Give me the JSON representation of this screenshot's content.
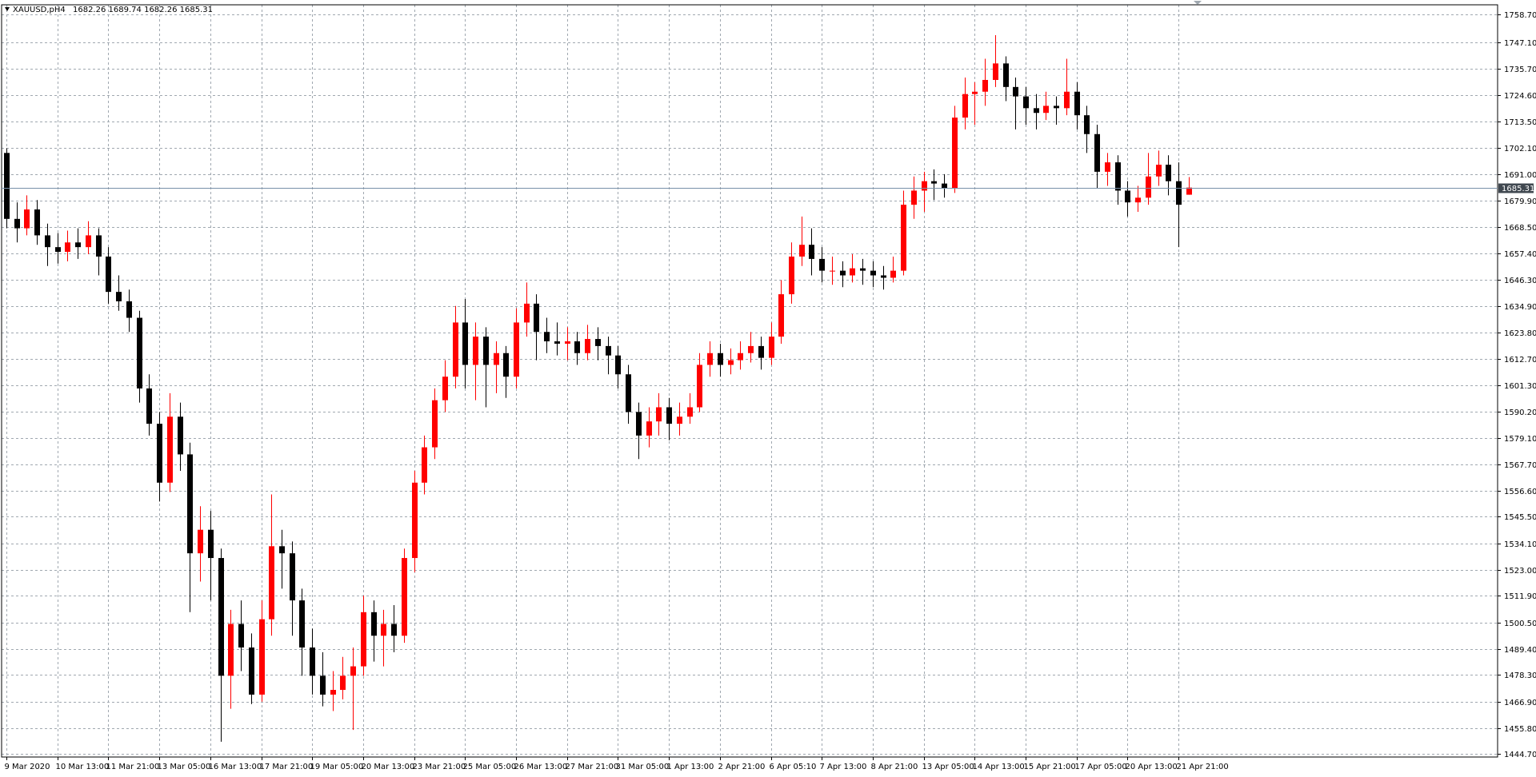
{
  "chart_data": {
    "type": "candlestick",
    "symbol": "XAUUSD,pH4",
    "up_color": "#ff0000",
    "down_color": "#000000",
    "grid": true,
    "ylim": [
      1443.5,
      1762.9
    ],
    "yticks": [
      {
        "value": 1444.7,
        "label": "1444.70"
      },
      {
        "value": 1455.8,
        "label": "1455.80"
      },
      {
        "value": 1466.9,
        "label": "1466.90"
      },
      {
        "value": 1478.3,
        "label": "1478.30"
      },
      {
        "value": 1489.4,
        "label": "1489.40"
      },
      {
        "value": 1500.5,
        "label": "1500.50"
      },
      {
        "value": 1511.9,
        "label": "1511.90"
      },
      {
        "value": 1523,
        "label": "1523.00"
      },
      {
        "value": 1534.1,
        "label": "1534.10"
      },
      {
        "value": 1545.5,
        "label": "1545.50"
      },
      {
        "value": 1556.6,
        "label": "1556.60"
      },
      {
        "value": 1567.7,
        "label": "1567.70"
      },
      {
        "value": 1579.1,
        "label": "1579.10"
      },
      {
        "value": 1590.2,
        "label": "1590.20"
      },
      {
        "value": 1601.3,
        "label": "1601.30"
      },
      {
        "value": 1612.7,
        "label": "1612.70"
      },
      {
        "value": 1623.8,
        "label": "1623.80"
      },
      {
        "value": 1634.9,
        "label": "1634.90"
      },
      {
        "value": 1646.3,
        "label": "1646.30"
      },
      {
        "value": 1657.4,
        "label": "1657.40"
      },
      {
        "value": 1668.5,
        "label": "1668.50"
      },
      {
        "value": 1679.9,
        "label": "1679.90"
      },
      {
        "value": 1691,
        "label": "1691.00"
      },
      {
        "value": 1702.1,
        "label": "1702.10"
      },
      {
        "value": 1713.5,
        "label": "1713.50"
      },
      {
        "value": 1724.6,
        "label": "1724.60"
      },
      {
        "value": 1735.7,
        "label": "1735.70"
      },
      {
        "value": 1747.1,
        "label": "1747.10"
      },
      {
        "value": 1758.7,
        "label": "1758.70"
      }
    ],
    "xticks": [
      {
        "value": 0,
        "label": "9 Mar 2020"
      },
      {
        "value": 5,
        "label": "10 Mar 13:00"
      },
      {
        "value": 10,
        "label": "11 Mar 21:00"
      },
      {
        "value": 15,
        "label": "13 Mar 05:00"
      },
      {
        "value": 20,
        "label": "16 Mar 13:00"
      },
      {
        "value": 25,
        "label": "17 Mar 21:00"
      },
      {
        "value": 30,
        "label": "19 Mar 05:00"
      },
      {
        "value": 35,
        "label": "20 Mar 13:00"
      },
      {
        "value": 40,
        "label": "23 Mar 21:00"
      },
      {
        "value": 45,
        "label": "25 Mar 05:00"
      },
      {
        "value": 50,
        "label": "26 Mar 13:00"
      },
      {
        "value": 55,
        "label": "27 Mar 21:00"
      },
      {
        "value": 60,
        "label": "31 Mar 05:00"
      },
      {
        "value": 65,
        "label": "1 Apr 13:00"
      },
      {
        "value": 70,
        "label": "2 Apr 21:00"
      },
      {
        "value": 75,
        "label": "6 Apr 05:10"
      },
      {
        "value": 80,
        "label": "7 Apr 13:00"
      },
      {
        "value": 85,
        "label": "8 Apr 21:00"
      },
      {
        "value": 90,
        "label": "13 Apr 05:00"
      },
      {
        "value": 95,
        "label": "14 Apr 13:00"
      },
      {
        "value": 100,
        "label": "15 Apr 21:00"
      },
      {
        "value": 105,
        "label": "17 Apr 05:00"
      },
      {
        "value": 110,
        "label": "20 Apr 13:00"
      },
      {
        "value": 115,
        "label": "21 Apr 21:00"
      }
    ],
    "ohlc": [
      [
        1700,
        1702,
        1668,
        1672
      ],
      [
        1672,
        1679,
        1662,
        1668
      ],
      [
        1668,
        1682,
        1665,
        1676
      ],
      [
        1676,
        1680,
        1661,
        1665
      ],
      [
        1665,
        1670,
        1652,
        1660
      ],
      [
        1660,
        1666,
        1653,
        1658
      ],
      [
        1658,
        1667,
        1654,
        1662
      ],
      [
        1662,
        1668,
        1655,
        1660
      ],
      [
        1660,
        1671,
        1657,
        1665
      ],
      [
        1665,
        1668,
        1648,
        1656
      ],
      [
        1656,
        1660,
        1636,
        1641
      ],
      [
        1641,
        1648,
        1633,
        1637
      ],
      [
        1637,
        1642,
        1624,
        1630
      ],
      [
        1630,
        1633,
        1594,
        1600
      ],
      [
        1600,
        1606,
        1580,
        1585
      ],
      [
        1585,
        1590,
        1552,
        1560
      ],
      [
        1560,
        1598,
        1556,
        1588
      ],
      [
        1588,
        1594,
        1565,
        1572
      ],
      [
        1572,
        1577,
        1505,
        1530
      ],
      [
        1530,
        1550,
        1518,
        1540
      ],
      [
        1540,
        1548,
        1510,
        1528
      ],
      [
        1528,
        1532,
        1450,
        1478
      ],
      [
        1478,
        1506,
        1464,
        1500
      ],
      [
        1500,
        1510,
        1480,
        1490
      ],
      [
        1490,
        1496,
        1466,
        1470
      ],
      [
        1470,
        1510,
        1467,
        1502
      ],
      [
        1502,
        1555,
        1495,
        1533
      ],
      [
        1533,
        1540,
        1515,
        1530
      ],
      [
        1530,
        1535,
        1495,
        1510
      ],
      [
        1510,
        1515,
        1478,
        1490
      ],
      [
        1490,
        1498,
        1470,
        1478
      ],
      [
        1478,
        1488,
        1465,
        1470
      ],
      [
        1470,
        1480,
        1463,
        1472
      ],
      [
        1472,
        1486,
        1468,
        1478
      ],
      [
        1478,
        1490,
        1455,
        1482
      ],
      [
        1482,
        1512,
        1478,
        1505
      ],
      [
        1505,
        1510,
        1484,
        1495
      ],
      [
        1495,
        1506,
        1482,
        1500
      ],
      [
        1500,
        1508,
        1488,
        1495
      ],
      [
        1495,
        1532,
        1492,
        1528
      ],
      [
        1528,
        1565,
        1522,
        1560
      ],
      [
        1560,
        1580,
        1555,
        1575
      ],
      [
        1575,
        1600,
        1570,
        1595
      ],
      [
        1595,
        1612,
        1590,
        1605
      ],
      [
        1605,
        1635,
        1600,
        1628
      ],
      [
        1628,
        1638,
        1600,
        1610
      ],
      [
        1610,
        1628,
        1595,
        1622
      ],
      [
        1622,
        1626,
        1592,
        1610
      ],
      [
        1610,
        1620,
        1598,
        1615
      ],
      [
        1615,
        1618,
        1596,
        1605
      ],
      [
        1605,
        1634,
        1600,
        1628
      ],
      [
        1628,
        1645,
        1622,
        1636
      ],
      [
        1636,
        1640,
        1612,
        1624
      ],
      [
        1624,
        1630,
        1615,
        1620
      ],
      [
        1620,
        1628,
        1614,
        1619
      ],
      [
        1619,
        1626,
        1612,
        1620
      ],
      [
        1620,
        1624,
        1610,
        1615
      ],
      [
        1615,
        1627,
        1612,
        1621
      ],
      [
        1621,
        1626,
        1612,
        1618
      ],
      [
        1618,
        1622,
        1606,
        1614
      ],
      [
        1614,
        1618,
        1600,
        1606
      ],
      [
        1606,
        1610,
        1585,
        1590
      ],
      [
        1590,
        1594,
        1570,
        1580
      ],
      [
        1580,
        1592,
        1575,
        1586
      ],
      [
        1586,
        1598,
        1580,
        1592
      ],
      [
        1592,
        1596,
        1578,
        1585
      ],
      [
        1585,
        1594,
        1580,
        1588
      ],
      [
        1588,
        1598,
        1585,
        1592
      ],
      [
        1592,
        1615,
        1590,
        1610
      ],
      [
        1610,
        1620,
        1605,
        1615
      ],
      [
        1615,
        1619,
        1605,
        1610
      ],
      [
        1610,
        1617,
        1606,
        1612
      ],
      [
        1612,
        1620,
        1608,
        1615
      ],
      [
        1615,
        1624,
        1611,
        1618
      ],
      [
        1618,
        1622,
        1608,
        1613
      ],
      [
        1613,
        1628,
        1610,
        1622
      ],
      [
        1622,
        1646,
        1619,
        1640
      ],
      [
        1640,
        1662,
        1636,
        1656
      ],
      [
        1656,
        1673,
        1652,
        1661
      ],
      [
        1661,
        1668,
        1648,
        1655
      ],
      [
        1655,
        1660,
        1645,
        1650
      ],
      [
        1650,
        1656,
        1644,
        1650
      ],
      [
        1650,
        1654,
        1643,
        1648
      ],
      [
        1648,
        1657,
        1645,
        1651
      ],
      [
        1651,
        1655,
        1644,
        1650
      ],
      [
        1650,
        1654,
        1643,
        1648
      ],
      [
        1648,
        1652,
        1642,
        1647
      ],
      [
        1647,
        1656,
        1645,
        1650
      ],
      [
        1650,
        1684,
        1648,
        1678
      ],
      [
        1678,
        1690,
        1672,
        1684
      ],
      [
        1684,
        1692,
        1675,
        1688
      ],
      [
        1688,
        1693,
        1680,
        1687
      ],
      [
        1687,
        1691,
        1681,
        1685
      ],
      [
        1685,
        1720,
        1683,
        1715
      ],
      [
        1715,
        1732,
        1710,
        1725
      ],
      [
        1725,
        1730,
        1712,
        1726
      ],
      [
        1726,
        1740,
        1720,
        1731
      ],
      [
        1731,
        1750,
        1728,
        1738
      ],
      [
        1738,
        1741,
        1722,
        1728
      ],
      [
        1728,
        1732,
        1710,
        1724
      ],
      [
        1724,
        1728,
        1712,
        1719
      ],
      [
        1719,
        1725,
        1710,
        1717
      ],
      [
        1717,
        1726,
        1714,
        1720
      ],
      [
        1720,
        1724,
        1712,
        1719
      ],
      [
        1719,
        1740,
        1716,
        1726
      ],
      [
        1726,
        1730,
        1710,
        1716
      ],
      [
        1716,
        1720,
        1700,
        1708
      ],
      [
        1708,
        1712,
        1685,
        1692
      ],
      [
        1692,
        1700,
        1686,
        1696
      ],
      [
        1696,
        1699,
        1678,
        1684
      ],
      [
        1684,
        1688,
        1673,
        1679
      ],
      [
        1679,
        1686,
        1675,
        1681
      ],
      [
        1681,
        1700,
        1678,
        1690
      ],
      [
        1690,
        1701,
        1686,
        1695
      ],
      [
        1695,
        1699,
        1682,
        1688
      ],
      [
        1688,
        1696,
        1660,
        1678
      ],
      [
        1682.26,
        1689.74,
        1682.26,
        1685.31
      ]
    ]
  }
}
